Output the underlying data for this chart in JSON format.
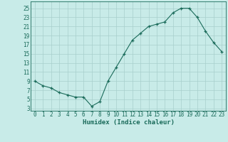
{
  "xlabel": "Humidex (Indice chaleur)",
  "x": [
    0,
    1,
    2,
    3,
    4,
    5,
    6,
    7,
    8,
    9,
    10,
    11,
    12,
    13,
    14,
    15,
    16,
    17,
    18,
    19,
    20,
    21,
    22,
    23
  ],
  "y": [
    9,
    8,
    7.5,
    6.5,
    6,
    5.5,
    5.5,
    3.5,
    4.5,
    9,
    12,
    15,
    18,
    19.5,
    21,
    21.5,
    22,
    24,
    25,
    25,
    23,
    20,
    17.5,
    15.5
  ],
  "line_color": "#1a6b5a",
  "marker": "+",
  "bg_color": "#c8ebe8",
  "grid_color": "#a8cfcc",
  "tick_color": "#1a6b5a",
  "label_color": "#1a6b5a",
  "yticks": [
    3,
    5,
    7,
    9,
    11,
    13,
    15,
    17,
    19,
    21,
    23,
    25
  ],
  "ylim": [
    2.5,
    26.5
  ],
  "xlim": [
    -0.5,
    23.5
  ],
  "xticks": [
    0,
    1,
    2,
    3,
    4,
    5,
    6,
    7,
    8,
    9,
    10,
    11,
    12,
    13,
    14,
    15,
    16,
    17,
    18,
    19,
    20,
    21,
    22,
    23
  ],
  "tick_fontsize": 5.5,
  "xlabel_fontsize": 6.5
}
